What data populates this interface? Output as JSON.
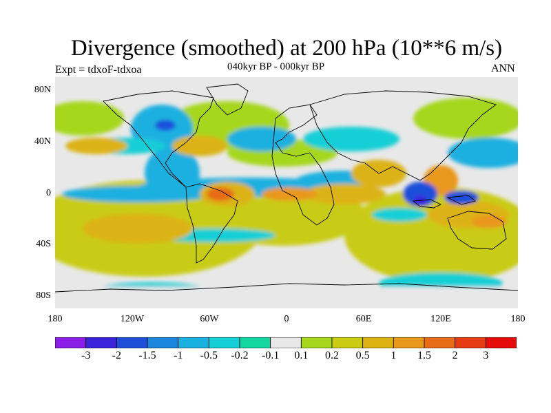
{
  "title": "Divergence (smoothed) at 200 hPa (10**6 m/s)",
  "subtitle": "040kyr BP - 000kyr BP",
  "left_label": "Expt = tdxoF-tdxoa",
  "right_label": "ANN",
  "lat_labels": [
    "80N",
    "40N",
    "0",
    "40S",
    "80S"
  ],
  "lon_labels": [
    "180",
    "120W",
    "60W",
    "0",
    "60E",
    "120E",
    "180"
  ],
  "colorbar": {
    "labels": [
      "-3",
      "-2",
      "-1.5",
      "-1",
      "-0.5",
      "-0.2",
      "-0.1",
      "0.1",
      "0.2",
      "0.5",
      "1",
      "1.5",
      "2",
      "3"
    ],
    "colors": [
      "#8b1ee6",
      "#3a23d9",
      "#1f4fd9",
      "#1c86dd",
      "#1ab0e0",
      "#14cfd6",
      "#14d69e",
      "#e8e8e8",
      "#a6d71c",
      "#c9cc12",
      "#dcb313",
      "#e8981a",
      "#e86b17",
      "#e63b12",
      "#e60c0c"
    ]
  },
  "map_colors": {
    "background": "#e8e8e8",
    "coastline": "#000000"
  }
}
